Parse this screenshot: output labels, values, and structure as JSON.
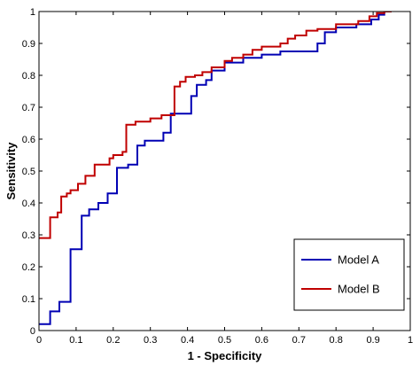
{
  "chart_data": {
    "type": "line",
    "xlabel": "1 - Specificity",
    "ylabel": "Sensitivity",
    "xlim": [
      0,
      1
    ],
    "ylim": [
      0,
      1
    ],
    "x_ticks": [
      "0",
      "0.1",
      "0.2",
      "0.3",
      "0.4",
      "0.5",
      "0.6",
      "0.7",
      "0.8",
      "0.9",
      "1"
    ],
    "y_ticks": [
      "0",
      "0.1",
      "0.2",
      "0.3",
      "0.4",
      "0.5",
      "0.6",
      "0.7",
      "0.8",
      "0.9",
      "1"
    ],
    "grid": false,
    "legend_position": "bottom-right",
    "series": [
      {
        "name": "Model A",
        "color": "#0000b4",
        "step": true,
        "points": [
          [
            0,
            0.02
          ],
          [
            0.03,
            0.02
          ],
          [
            0.03,
            0.06
          ],
          [
            0.055,
            0.06
          ],
          [
            0.055,
            0.09
          ],
          [
            0.085,
            0.09
          ],
          [
            0.085,
            0.255
          ],
          [
            0.115,
            0.255
          ],
          [
            0.115,
            0.36
          ],
          [
            0.135,
            0.36
          ],
          [
            0.135,
            0.38
          ],
          [
            0.16,
            0.38
          ],
          [
            0.16,
            0.4
          ],
          [
            0.185,
            0.4
          ],
          [
            0.185,
            0.43
          ],
          [
            0.21,
            0.43
          ],
          [
            0.21,
            0.51
          ],
          [
            0.24,
            0.51
          ],
          [
            0.24,
            0.52
          ],
          [
            0.265,
            0.52
          ],
          [
            0.265,
            0.58
          ],
          [
            0.285,
            0.58
          ],
          [
            0.285,
            0.595
          ],
          [
            0.335,
            0.595
          ],
          [
            0.335,
            0.62
          ],
          [
            0.355,
            0.62
          ],
          [
            0.355,
            0.68
          ],
          [
            0.41,
            0.68
          ],
          [
            0.41,
            0.735
          ],
          [
            0.425,
            0.735
          ],
          [
            0.425,
            0.77
          ],
          [
            0.45,
            0.77
          ],
          [
            0.45,
            0.785
          ],
          [
            0.465,
            0.785
          ],
          [
            0.465,
            0.815
          ],
          [
            0.5,
            0.815
          ],
          [
            0.5,
            0.84
          ],
          [
            0.55,
            0.84
          ],
          [
            0.55,
            0.855
          ],
          [
            0.6,
            0.855
          ],
          [
            0.6,
            0.865
          ],
          [
            0.65,
            0.865
          ],
          [
            0.65,
            0.875
          ],
          [
            0.75,
            0.875
          ],
          [
            0.75,
            0.9
          ],
          [
            0.77,
            0.9
          ],
          [
            0.77,
            0.935
          ],
          [
            0.8,
            0.935
          ],
          [
            0.8,
            0.95
          ],
          [
            0.855,
            0.95
          ],
          [
            0.855,
            0.96
          ],
          [
            0.895,
            0.96
          ],
          [
            0.895,
            0.975
          ],
          [
            0.915,
            0.975
          ],
          [
            0.915,
            0.99
          ],
          [
            0.93,
            0.99
          ],
          [
            0.93,
            1.0
          ],
          [
            0.95,
            1.0
          ]
        ]
      },
      {
        "name": "Model B",
        "color": "#c00000",
        "step": true,
        "points": [
          [
            0,
            0.29
          ],
          [
            0.03,
            0.29
          ],
          [
            0.03,
            0.355
          ],
          [
            0.05,
            0.355
          ],
          [
            0.05,
            0.37
          ],
          [
            0.06,
            0.37
          ],
          [
            0.06,
            0.42
          ],
          [
            0.075,
            0.42
          ],
          [
            0.075,
            0.43
          ],
          [
            0.085,
            0.43
          ],
          [
            0.085,
            0.44
          ],
          [
            0.105,
            0.44
          ],
          [
            0.105,
            0.46
          ],
          [
            0.125,
            0.46
          ],
          [
            0.125,
            0.485
          ],
          [
            0.15,
            0.485
          ],
          [
            0.15,
            0.52
          ],
          [
            0.19,
            0.52
          ],
          [
            0.19,
            0.54
          ],
          [
            0.2,
            0.54
          ],
          [
            0.2,
            0.55
          ],
          [
            0.225,
            0.55
          ],
          [
            0.225,
            0.56
          ],
          [
            0.235,
            0.56
          ],
          [
            0.235,
            0.645
          ],
          [
            0.26,
            0.645
          ],
          [
            0.26,
            0.655
          ],
          [
            0.3,
            0.655
          ],
          [
            0.3,
            0.665
          ],
          [
            0.33,
            0.665
          ],
          [
            0.33,
            0.675
          ],
          [
            0.365,
            0.675
          ],
          [
            0.365,
            0.765
          ],
          [
            0.38,
            0.765
          ],
          [
            0.38,
            0.78
          ],
          [
            0.395,
            0.78
          ],
          [
            0.395,
            0.795
          ],
          [
            0.42,
            0.795
          ],
          [
            0.42,
            0.8
          ],
          [
            0.44,
            0.8
          ],
          [
            0.44,
            0.81
          ],
          [
            0.465,
            0.81
          ],
          [
            0.465,
            0.825
          ],
          [
            0.5,
            0.825
          ],
          [
            0.5,
            0.845
          ],
          [
            0.52,
            0.845
          ],
          [
            0.52,
            0.855
          ],
          [
            0.55,
            0.855
          ],
          [
            0.55,
            0.865
          ],
          [
            0.575,
            0.865
          ],
          [
            0.575,
            0.88
          ],
          [
            0.6,
            0.88
          ],
          [
            0.6,
            0.89
          ],
          [
            0.65,
            0.89
          ],
          [
            0.65,
            0.9
          ],
          [
            0.67,
            0.9
          ],
          [
            0.67,
            0.915
          ],
          [
            0.69,
            0.915
          ],
          [
            0.69,
            0.925
          ],
          [
            0.72,
            0.925
          ],
          [
            0.72,
            0.94
          ],
          [
            0.75,
            0.94
          ],
          [
            0.75,
            0.945
          ],
          [
            0.8,
            0.945
          ],
          [
            0.8,
            0.96
          ],
          [
            0.86,
            0.96
          ],
          [
            0.86,
            0.97
          ],
          [
            0.89,
            0.97
          ],
          [
            0.89,
            0.985
          ],
          [
            0.91,
            0.985
          ],
          [
            0.91,
            0.995
          ],
          [
            0.93,
            0.995
          ],
          [
            0.93,
            1.0
          ],
          [
            0.95,
            1.0
          ]
        ]
      }
    ]
  }
}
